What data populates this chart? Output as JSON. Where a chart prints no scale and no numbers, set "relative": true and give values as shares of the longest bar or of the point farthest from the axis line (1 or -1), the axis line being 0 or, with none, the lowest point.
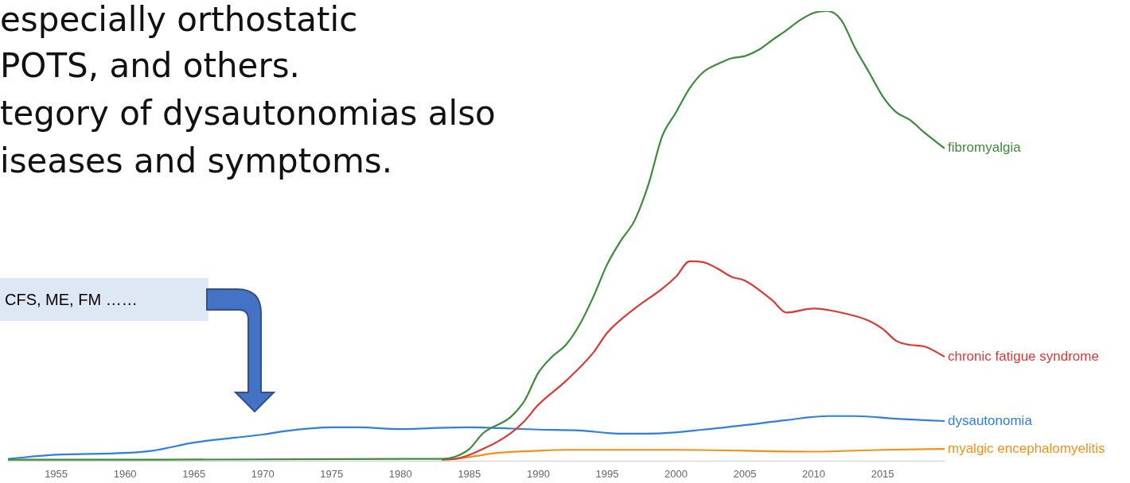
{
  "chart_data": {
    "type": "line",
    "relative": true,
    "legend": false,
    "grid": false,
    "marker": "none",
    "xlim": [
      1951.5,
      2019.5
    ],
    "xticks": [
      1955,
      1960,
      1965,
      1970,
      1975,
      1980,
      1985,
      1990,
      1995,
      2000,
      2005,
      2010,
      2015
    ],
    "annotations": [
      "especially orthostatic",
      "POTS, and others.",
      "tegory of dysautonomias also",
      "iseases and symptoms.",
      "CFS, ME, FM ……"
    ],
    "series": [
      {
        "name": "fibromyalgia",
        "color": "#3c8b3a",
        "x": [
          1951.5,
          1983,
          1984,
          1985,
          1986,
          1988,
          1989,
          1990,
          1991,
          1992,
          1993,
          1994,
          1995,
          1996,
          1997,
          1998,
          1999,
          2000,
          2001,
          2002,
          2003,
          2004,
          2005,
          2006,
          2007,
          2008,
          2009,
          2010,
          2011,
          2012,
          2013,
          2014,
          2015,
          2016,
          2017,
          2018,
          2019.5
        ],
        "values": [
          0.003,
          0.005,
          0.01,
          0.027,
          0.062,
          0.098,
          0.134,
          0.196,
          0.232,
          0.258,
          0.303,
          0.365,
          0.437,
          0.49,
          0.535,
          0.615,
          0.722,
          0.775,
          0.829,
          0.865,
          0.882,
          0.895,
          0.9,
          0.914,
          0.936,
          0.957,
          0.98,
          0.996,
          1,
          0.98,
          0.918,
          0.865,
          0.811,
          0.775,
          0.758,
          0.731,
          0.695
        ]
      },
      {
        "name": "chronic fatigue syndrome",
        "color": "#d83a34",
        "x": [
          1983,
          1984,
          1986,
          1988,
          1989,
          1990,
          1992,
          1994,
          1995,
          1997,
          1999,
          2000,
          2001,
          2002,
          2003,
          2004,
          2005,
          2007,
          2008,
          2010,
          2012,
          2014,
          2015,
          2016,
          2017,
          2018,
          2019.5
        ],
        "values": [
          0.004,
          0.005,
          0.027,
          0.062,
          0.089,
          0.125,
          0.178,
          0.241,
          0.285,
          0.339,
          0.383,
          0.41,
          0.444,
          0.442,
          0.428,
          0.41,
          0.401,
          0.357,
          0.33,
          0.339,
          0.33,
          0.312,
          0.294,
          0.267,
          0.258,
          0.255,
          0.232
        ]
      },
      {
        "name": "dysautonomia",
        "color": "#2f7ee0",
        "x": [
          1951.5,
          1955,
          1960,
          1962,
          1965,
          1968,
          1970,
          1972,
          1975,
          1977,
          1980,
          1982,
          1985,
          1990,
          1993,
          1996,
          1999,
          2002,
          2005,
          2008,
          2011,
          2013,
          2016,
          2019.5
        ],
        "values": [
          0.005,
          0.014,
          0.018,
          0.023,
          0.041,
          0.052,
          0.059,
          0.068,
          0.075,
          0.075,
          0.071,
          0.073,
          0.075,
          0.07,
          0.068,
          0.061,
          0.062,
          0.07,
          0.08,
          0.091,
          0.1,
          0.1,
          0.094,
          0.089
        ]
      },
      {
        "name": "myalgic encephalomyelitis",
        "color": "#f39019",
        "x": [
          1983,
          1985,
          1987,
          1990,
          1992,
          2000,
          2010,
          2015,
          2019.5
        ],
        "values": [
          0.002,
          0.009,
          0.018,
          0.023,
          0.025,
          0.025,
          0.021,
          0.025,
          0.027
        ]
      }
    ]
  }
}
